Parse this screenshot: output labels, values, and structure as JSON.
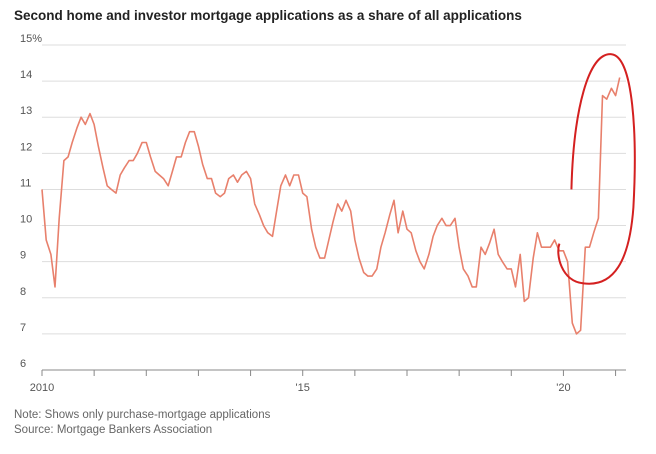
{
  "chart_data": {
    "type": "line",
    "title": "Second home and investor mortgage applications as a share of all applications",
    "notes": {
      "note": "Note: Shows only purchase-mortgage applications",
      "source": "Source: Mortgage Bankers Association"
    },
    "xlim": [
      2010,
      2021.2
    ],
    "ylim": [
      6,
      15
    ],
    "y_unit": "%",
    "yticks": [
      "6",
      "7",
      "8",
      "9",
      "10",
      "11",
      "12",
      "13",
      "14",
      "15%"
    ],
    "xticks": [
      {
        "value": 2010,
        "label": "2010"
      },
      {
        "value": 2015,
        "label": "'15"
      },
      {
        "value": 2020,
        "label": "'20"
      }
    ],
    "grid": true,
    "colors": {
      "line": "#e8806c",
      "annotation": "#d42020",
      "grid": "#dddddd"
    },
    "annotation": {
      "shape": "hand-drawn circle",
      "around_x": [
        2020.0,
        2021.15
      ]
    },
    "series": [
      {
        "x": [
          2010.0,
          2010.08,
          2010.17,
          2010.25,
          2010.33,
          2010.42,
          2010.5,
          2010.58,
          2010.67,
          2010.75,
          2010.83,
          2010.92,
          2011.0,
          2011.08,
          2011.17,
          2011.25,
          2011.33,
          2011.42,
          2011.5,
          2011.58,
          2011.67,
          2011.75,
          2011.83,
          2011.92,
          2012.0,
          2012.08,
          2012.17,
          2012.25,
          2012.33,
          2012.42,
          2012.5,
          2012.58,
          2012.67,
          2012.75,
          2012.83,
          2012.92,
          2013.0,
          2013.08,
          2013.17,
          2013.25,
          2013.33,
          2013.42,
          2013.5,
          2013.58,
          2013.67,
          2013.75,
          2013.83,
          2013.92,
          2014.0,
          2014.08,
          2014.17,
          2014.25,
          2014.33,
          2014.42,
          2014.5,
          2014.58,
          2014.67,
          2014.75,
          2014.83,
          2014.92,
          2015.0,
          2015.08,
          2015.17,
          2015.25,
          2015.33,
          2015.42,
          2015.5,
          2015.58,
          2015.67,
          2015.75,
          2015.83,
          2015.92,
          2016.0,
          2016.08,
          2016.17,
          2016.25,
          2016.33,
          2016.42,
          2016.5,
          2016.58,
          2016.67,
          2016.75,
          2016.83,
          2016.92,
          2017.0,
          2017.08,
          2017.17,
          2017.25,
          2017.33,
          2017.42,
          2017.5,
          2017.58,
          2017.67,
          2017.75,
          2017.83,
          2017.92,
          2018.0,
          2018.08,
          2018.17,
          2018.25,
          2018.33,
          2018.42,
          2018.5,
          2018.58,
          2018.67,
          2018.75,
          2018.83,
          2018.92,
          2019.0,
          2019.08,
          2019.17,
          2019.25,
          2019.33,
          2019.42,
          2019.5,
          2019.58,
          2019.67,
          2019.75,
          2019.83,
          2019.92,
          2020.0,
          2020.08,
          2020.17,
          2020.25,
          2020.33,
          2020.42,
          2020.5,
          2020.58,
          2020.67,
          2020.75,
          2020.83,
          2020.92,
          2021.0,
          2021.08
        ],
        "values": [
          11.0,
          9.6,
          9.2,
          8.3,
          10.2,
          11.8,
          11.9,
          12.3,
          12.7,
          13.0,
          12.8,
          13.1,
          12.8,
          12.2,
          11.6,
          11.1,
          11.0,
          10.9,
          11.4,
          11.6,
          11.8,
          11.8,
          12.0,
          12.3,
          12.3,
          11.9,
          11.5,
          11.4,
          11.3,
          11.1,
          11.5,
          11.9,
          11.9,
          12.3,
          12.6,
          12.6,
          12.2,
          11.7,
          11.3,
          11.3,
          10.9,
          10.8,
          10.9,
          11.3,
          11.4,
          11.2,
          11.4,
          11.5,
          11.3,
          10.6,
          10.3,
          10.0,
          9.8,
          9.7,
          10.4,
          11.1,
          11.4,
          11.1,
          11.4,
          11.4,
          10.9,
          10.8,
          9.9,
          9.4,
          9.1,
          9.1,
          9.6,
          10.1,
          10.6,
          10.4,
          10.7,
          10.4,
          9.6,
          9.1,
          8.7,
          8.6,
          8.6,
          8.8,
          9.4,
          9.8,
          10.3,
          10.7,
          9.8,
          10.4,
          9.9,
          9.8,
          9.3,
          9.0,
          8.8,
          9.2,
          9.7,
          10.0,
          10.2,
          10.0,
          10.0,
          10.2,
          9.4,
          8.8,
          8.6,
          8.3,
          8.3,
          9.4,
          9.2,
          9.5,
          9.9,
          9.2,
          9.0,
          8.8,
          8.8,
          8.3,
          9.2,
          7.9,
          8.0,
          9.1,
          9.8,
          9.4,
          9.4,
          9.4,
          9.6,
          9.3,
          9.3,
          9.0,
          7.3,
          7.0,
          7.1,
          9.4,
          9.4,
          9.8,
          10.2,
          13.6,
          13.5,
          13.8,
          13.6,
          14.1
        ]
      }
    ]
  }
}
